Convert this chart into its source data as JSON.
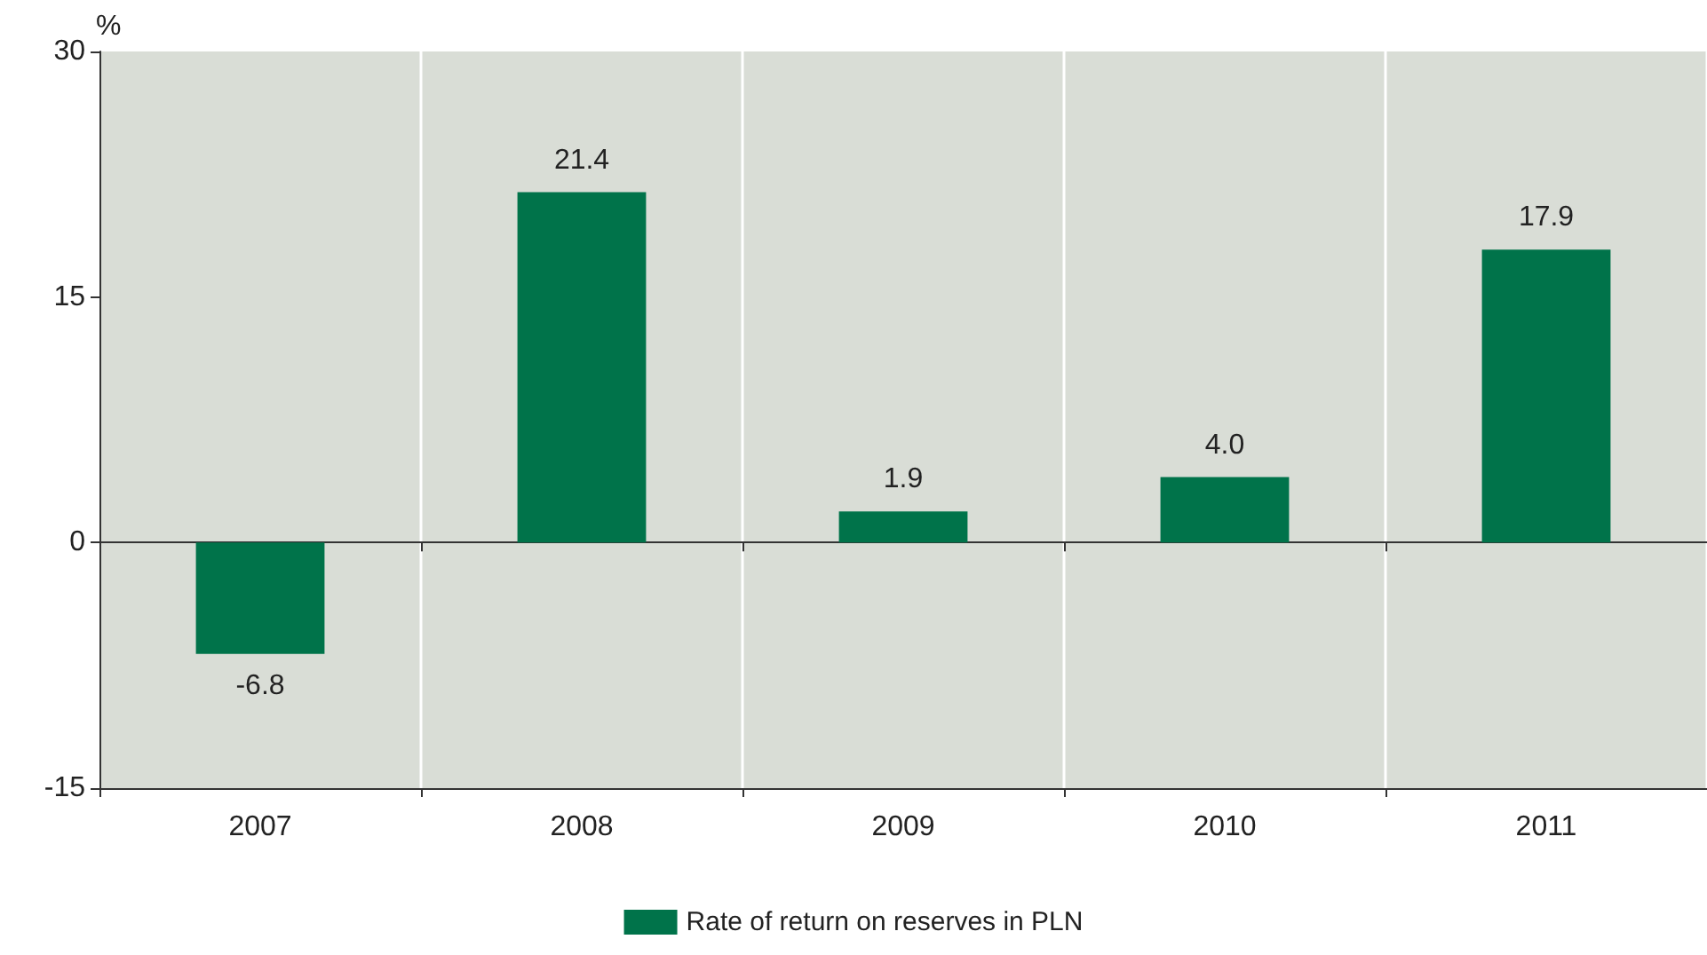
{
  "chart_data": {
    "type": "bar",
    "ylabel": "%",
    "categories": [
      "2007",
      "2008",
      "2009",
      "2010",
      "2011"
    ],
    "series": [
      {
        "name": "Rate of return on reserves in PLN",
        "color": "#00734a",
        "values": [
          -6.8,
          21.4,
          1.9,
          4.0,
          17.9
        ],
        "value_labels": [
          "-6.8",
          "21.4",
          "1.9",
          "4.0",
          "17.9"
        ]
      }
    ],
    "ylim": [
      -15,
      30
    ],
    "yticks": [
      -15,
      0,
      15,
      30
    ],
    "grid": "x",
    "legend": "bottom"
  }
}
